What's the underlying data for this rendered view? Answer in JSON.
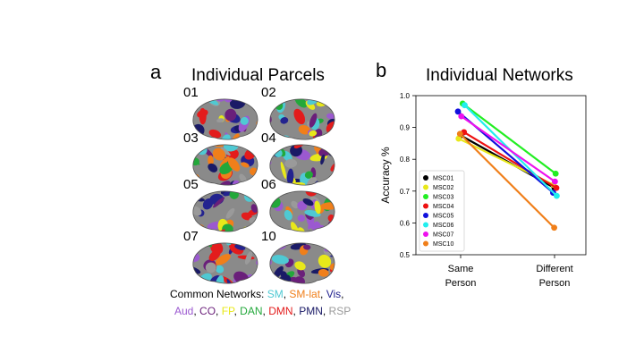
{
  "panel_a": {
    "letter": "a",
    "title": "Individual Parcels",
    "subjects": [
      "01",
      "02",
      "03",
      "04",
      "05",
      "06",
      "07",
      "10"
    ],
    "networks_label": "Common Networks:",
    "networks": [
      {
        "name": "SM",
        "color": "#4fc9d3"
      },
      {
        "name": "SM-lat",
        "color": "#f07f1a"
      },
      {
        "name": "Vis",
        "color": "#23238f"
      },
      {
        "name": "Aud",
        "color": "#9b59d0"
      },
      {
        "name": "CO",
        "color": "#6a1f7a"
      },
      {
        "name": "FP",
        "color": "#e8e81a"
      },
      {
        "name": "DAN",
        "color": "#22a83a"
      },
      {
        "name": "DMN",
        "color": "#e31c1c"
      },
      {
        "name": "PMN",
        "color": "#1a1a66"
      },
      {
        "name": "RSP",
        "color": "#9a9a9a"
      }
    ]
  },
  "panel_b": {
    "letter": "b",
    "title": "Individual Networks"
  },
  "chart_data": {
    "type": "line",
    "title": "Individual Networks",
    "ylabel": "Accuracy %",
    "xlabel": "",
    "categories": [
      "Same Person",
      "Different Person"
    ],
    "ylim": [
      0.5,
      1.0
    ],
    "yticks": [
      "0.5",
      "0.6",
      "0.7",
      "0.8",
      "0.9",
      "1.0"
    ],
    "legend_position": "bottom-left",
    "series": [
      {
        "name": "MSC01",
        "color": "#000000",
        "values": [
          0.875,
          0.71
        ]
      },
      {
        "name": "MSC02",
        "color": "#e8e81a",
        "values": [
          0.865,
          0.72
        ]
      },
      {
        "name": "MSC03",
        "color": "#22ee22",
        "values": [
          0.975,
          0.755
        ]
      },
      {
        "name": "MSC04",
        "color": "#ee1111",
        "values": [
          0.885,
          0.71
        ]
      },
      {
        "name": "MSC05",
        "color": "#1111dd",
        "values": [
          0.95,
          0.695
        ]
      },
      {
        "name": "MSC06",
        "color": "#22eeee",
        "values": [
          0.97,
          0.685
        ]
      },
      {
        "name": "MSC07",
        "color": "#ee11ee",
        "values": [
          0.935,
          0.73
        ]
      },
      {
        "name": "MSC10",
        "color": "#f07f1a",
        "values": [
          0.88,
          0.585
        ]
      }
    ]
  }
}
